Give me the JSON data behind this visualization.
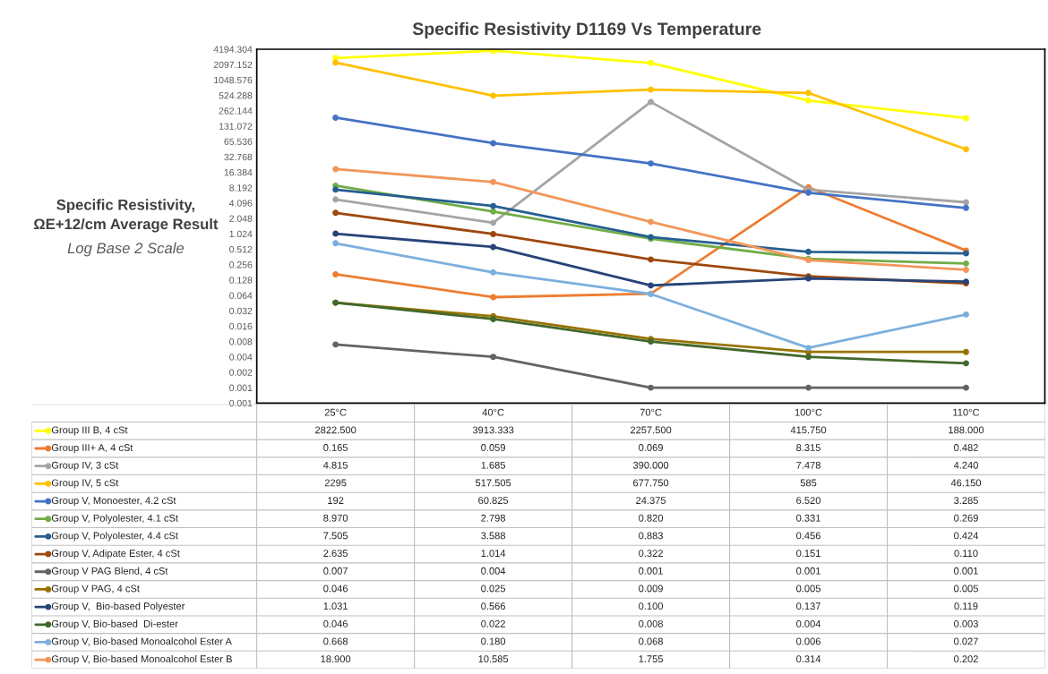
{
  "chart_data": {
    "type": "line",
    "title": "Specific Resistivity D1169 Vs Temperature",
    "ylabel": "Specific Resistivity,\nΩE+12/cm Average Result",
    "annotations": [
      "Log Base 2 Scale"
    ],
    "log": true,
    "grid": false,
    "legend": "bottom",
    "marker": "circle",
    "line_style": "solid",
    "categories": [
      "25°C",
      "40°C",
      "70°C",
      "100°C",
      "110°C"
    ],
    "ylim": [
      0.0005,
      4194.304
    ],
    "yticks": [
      {
        "value": 0.0005,
        "label": "0.001"
      },
      0.001,
      0.002,
      0.004,
      0.008,
      0.016,
      0.032,
      0.064,
      0.128,
      0.256,
      0.512,
      1.024,
      2.048,
      4.096,
      8.192,
      16.384,
      32.768,
      65.536,
      131.072,
      262.144,
      524.288,
      1048.576,
      2097.152,
      4194.304
    ],
    "series": [
      {
        "name": "Group III B, 4 cSt",
        "color": "#ffff00",
        "values": [
          2822.5,
          3913.333,
          2257.5,
          415.75,
          188.0
        ],
        "value_labels": [
          "2822.500",
          "3913.333",
          "2257.500",
          "415.750",
          "188.000"
        ]
      },
      {
        "name": "Group III+ A, 4 cSt",
        "color": "#ed7d31",
        "values": [
          0.165,
          0.059,
          0.069,
          8.315,
          0.482
        ],
        "value_labels": [
          "0.165",
          "0.059",
          "0.069",
          "8.315",
          "0.482"
        ]
      },
      {
        "name": "Group IV, 3 cSt",
        "color": "#a5a5a5",
        "values": [
          4.815,
          1.685,
          390.0,
          7.478,
          4.24
        ],
        "value_labels": [
          "4.815",
          "1.685",
          "390.000",
          "7.478",
          "4.240"
        ]
      },
      {
        "name": "Group IV, 5 cSt",
        "color": "#ffc000",
        "values": [
          2295,
          517.505,
          677.75,
          585,
          46.15
        ],
        "value_labels": [
          "2295",
          "517.505",
          "677.750",
          "585",
          "46.150"
        ]
      },
      {
        "name": "Group V, Monoester, 4.2 cSt",
        "color": "#4472c4",
        "values": [
          192,
          60.825,
          24.375,
          6.52,
          3.285
        ],
        "value_labels": [
          "192",
          "60.825",
          "24.375",
          "6.520",
          "3.285"
        ]
      },
      {
        "name": "Group V, Polyolester, 4.1 cSt",
        "color": "#70ad47",
        "values": [
          8.97,
          2.798,
          0.82,
          0.331,
          0.269
        ],
        "value_labels": [
          "8.970",
          "2.798",
          "0.820",
          "0.331",
          "0.269"
        ]
      },
      {
        "name": "Group V, Polyolester, 4.4 cSt",
        "color": "#255e91",
        "values": [
          7.505,
          3.588,
          0.883,
          0.456,
          0.424
        ],
        "value_labels": [
          "7.505",
          "3.588",
          "0.883",
          "0.456",
          "0.424"
        ]
      },
      {
        "name": "Group V, Adipate Ester, 4 cSt",
        "color": "#9e480e",
        "values": [
          2.635,
          1.014,
          0.322,
          0.151,
          0.11
        ],
        "value_labels": [
          "2.635",
          "1.014",
          "0.322",
          "0.151",
          "0.110"
        ]
      },
      {
        "name": "Group V PAG Blend, 4 cSt",
        "color": "#636363",
        "values": [
          0.007,
          0.004,
          0.001,
          0.001,
          0.001
        ],
        "value_labels": [
          "0.007",
          "0.004",
          "0.001",
          "0.001",
          "0.001"
        ]
      },
      {
        "name": "Group V PAG, 4 cSt",
        "color": "#997300",
        "values": [
          0.046,
          0.025,
          0.009,
          0.005,
          0.005
        ],
        "value_labels": [
          "0.046",
          "0.025",
          "0.009",
          "0.005",
          "0.005"
        ]
      },
      {
        "name": "Group V,  Bio-based Polyester",
        "color": "#264478",
        "values": [
          1.031,
          0.566,
          0.1,
          0.137,
          0.119
        ],
        "value_labels": [
          "1.031",
          "0.566",
          "0.100",
          "0.137",
          "0.119"
        ]
      },
      {
        "name": "Group V, Bio-based  Di-ester",
        "color": "#43682b",
        "values": [
          0.046,
          0.022,
          0.008,
          0.004,
          0.003
        ],
        "value_labels": [
          "0.046",
          "0.022",
          "0.008",
          "0.004",
          "0.003"
        ]
      },
      {
        "name": "Group V, Bio-based Monoalcohol Ester A",
        "color": "#7cafdd",
        "values": [
          0.668,
          0.18,
          0.068,
          0.006,
          0.027
        ],
        "value_labels": [
          "0.668",
          "0.180",
          "0.068",
          "0.006",
          "0.027"
        ]
      },
      {
        "name": "Group V, Bio-based Monoalcohol Ester B",
        "color": "#f1975a",
        "values": [
          18.9,
          10.585,
          1.755,
          0.314,
          0.202
        ],
        "value_labels": [
          "18.900",
          "10.585",
          "1.755",
          "0.314",
          "0.202"
        ]
      }
    ]
  }
}
